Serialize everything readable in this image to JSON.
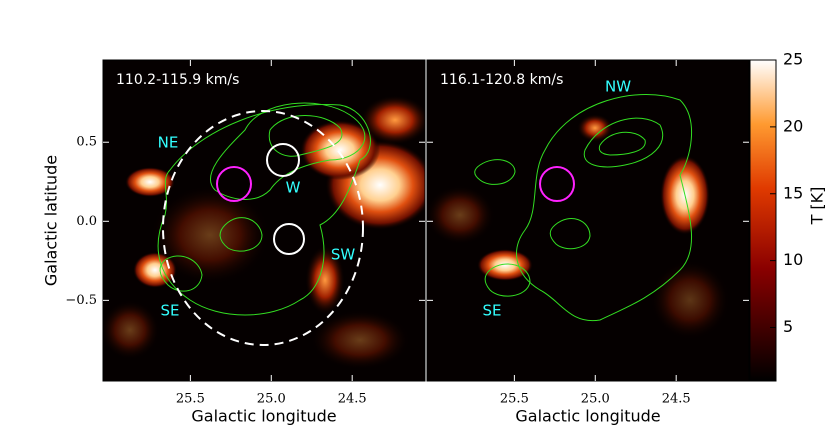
{
  "chart_data": [
    {
      "type": "image",
      "title": "110.2-115.9 km/s",
      "xlabel": "Galactic longitude",
      "ylabel": "Galactic latitude",
      "xlim": [
        26.04,
        24.05
      ],
      "ylim": [
        -1.01,
        1.02
      ],
      "xticks": [
        25.5,
        {
          "value": 25,
          "label": "25.0"
        },
        24.5
      ],
      "yticks": [
        0.5,
        {
          "value": 0,
          "label": "0.0"
        },
        {
          "value": -0.5,
          "label": "−0.5"
        }
      ],
      "annotations": [
        "NE",
        "W",
        "SW",
        "SE"
      ]
    },
    {
      "type": "image",
      "title": "116.1-120.8 km/s",
      "xlabel": "Galactic longitude",
      "xlim": [
        26.04,
        24.05
      ],
      "xticks": [
        25.5,
        {
          "value": 25,
          "label": "25.0"
        },
        24.5
      ],
      "annotations": [
        "NW",
        "SE"
      ],
      "colorbar": {
        "label": "T [K]",
        "lim": [
          1,
          25
        ],
        "ticks": [
          5,
          10,
          15,
          20,
          25
        ]
      }
    }
  ]
}
